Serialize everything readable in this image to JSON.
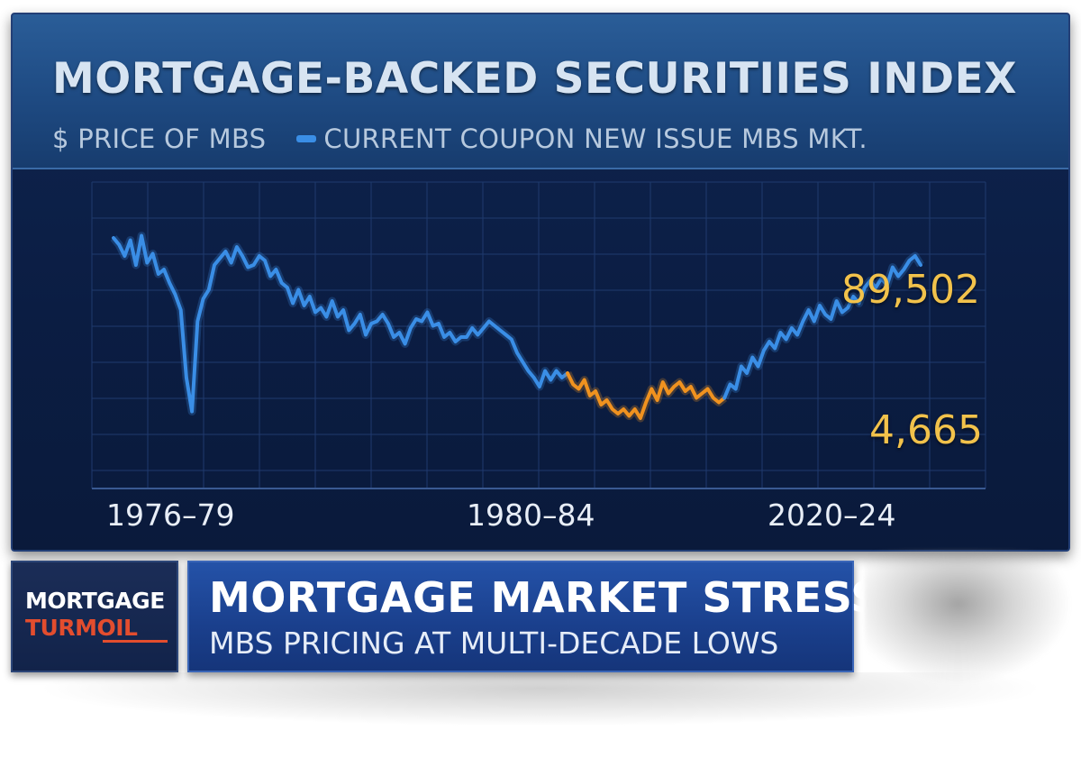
{
  "header": {
    "title": "MORTGAGE-BACKED SECURITIIES INDEX",
    "subtitle_left": "$ PRICE OF MBS",
    "legend_label": "CURRENT COUPON NEW ISSUE MBS MKT."
  },
  "lower_third": {
    "brand_top": "MORTGAGE",
    "brand_bottom": "TURMOIL",
    "headline": "MORTGAGE MARKET STRESS",
    "subheadline": "MBS PRICING AT MULTI-DECADE LOWS"
  },
  "colors": {
    "line_blue": "#3a8ee6",
    "line_orange": "#f0921f",
    "label_gold": "#f2c24b",
    "brand_red": "#e34d2e"
  },
  "chart_data": {
    "type": "line",
    "title": "MORTGAGE-BACKED SECURITIIES INDEX",
    "subtitle": "$ PRICE OF MBS",
    "xlabel": "",
    "ylabel": "",
    "x_ticks": [
      "1976–79",
      "1980–84",
      "2020–24"
    ],
    "end_labels": [
      "89,502",
      "4,665"
    ],
    "grid": true,
    "legend": "top-left",
    "series": [
      {
        "name": "CURRENT COUPON NEW ISSUE MBS MKT.",
        "values": [
          92,
          89,
          84,
          91,
          80,
          93,
          81,
          85,
          76,
          78,
          72,
          67,
          60,
          30,
          15,
          55,
          65,
          69,
          80,
          83,
          86,
          81,
          88,
          84,
          79,
          80,
          84,
          82,
          75,
          78,
          72,
          70,
          63,
          69,
          62,
          66,
          59,
          61,
          57,
          64,
          57,
          60,
          51,
          54,
          58,
          49,
          54,
          55,
          58,
          54,
          48,
          50,
          45,
          52,
          56,
          55,
          59,
          53,
          54,
          48,
          50,
          46,
          48,
          48,
          52,
          49,
          52,
          55,
          53,
          51,
          49,
          47,
          41,
          37,
          33,
          30,
          26,
          33,
          29,
          33,
          30,
          32
        ],
        "segment_color": "#3a8ee6"
      },
      {
        "name": "",
        "values": [
          32,
          27,
          25,
          29,
          22,
          24,
          18,
          20,
          16,
          14,
          16,
          13,
          16,
          12,
          19,
          25,
          20,
          28,
          23,
          26,
          28,
          24,
          26,
          21,
          23,
          25,
          21,
          19,
          21
        ],
        "segment_color": "#f0921f"
      },
      {
        "name": "",
        "values": [
          21,
          27,
          25,
          35,
          32,
          39,
          35,
          42,
          46,
          43,
          50,
          47,
          52,
          49,
          55,
          60,
          55,
          62,
          58,
          56,
          64,
          59,
          61,
          66,
          63,
          70,
          73,
          70,
          74,
          71,
          79,
          75,
          78,
          82,
          84,
          80
        ],
        "segment_color": "#3a8ee6"
      }
    ]
  }
}
